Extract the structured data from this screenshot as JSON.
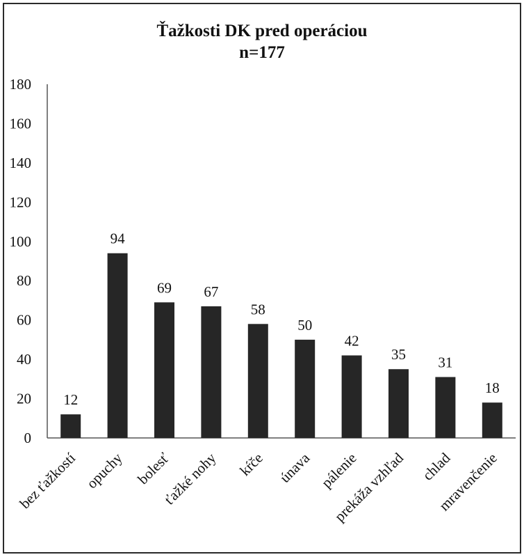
{
  "chart_data": {
    "type": "bar",
    "title": "Ťažkosti DK pred operáciou",
    "subtitle": "n=177",
    "categories": [
      "bez ťažkostí",
      "opuchy",
      "bolesť",
      "ťažké nohy",
      "kŕče",
      "únava",
      "pálenie",
      "prekáža vzhľad",
      "chlad",
      "mravenčenie"
    ],
    "values": [
      12,
      94,
      69,
      67,
      58,
      50,
      42,
      35,
      31,
      18
    ],
    "ylim": [
      0,
      180
    ],
    "yticks": [
      0,
      20,
      40,
      60,
      80,
      100,
      120,
      140,
      160,
      180
    ],
    "xlabel": "",
    "ylabel": "",
    "grid": false,
    "legend": "none",
    "bar_color": "#262626"
  }
}
